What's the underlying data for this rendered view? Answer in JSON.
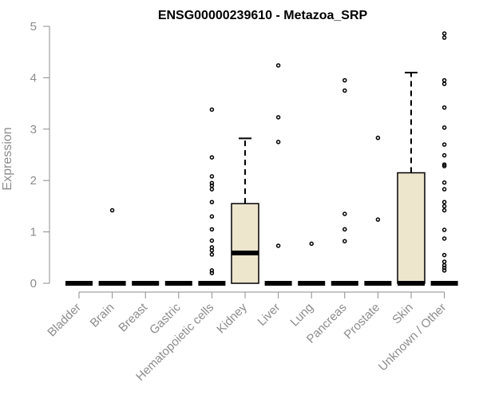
{
  "chart_data": {
    "type": "boxplot",
    "title": "ENSG00000239610 - Metazoa_SRP",
    "xlabel": "",
    "ylabel": "Expression",
    "ylim": [
      0,
      5
    ],
    "yticks": [
      "0",
      "1",
      "2",
      "3",
      "4",
      "5"
    ],
    "grid": false,
    "legend": "none",
    "box_fill": "#ede6cd",
    "categories": [
      "Bladder",
      "Brain",
      "Breast",
      "Gastric",
      "Hematopoietic cells",
      "Kidney",
      "Liver",
      "Lung",
      "Pancreas",
      "Prostate",
      "Skin",
      "Unknown / Other"
    ],
    "boxes": [
      {
        "q1": 0,
        "median": 0,
        "q3": 0,
        "whisker_low": 0,
        "whisker_high": 0,
        "outliers": []
      },
      {
        "q1": 0,
        "median": 0,
        "q3": 0,
        "whisker_low": 0,
        "whisker_high": 0,
        "outliers": [
          1.42
        ]
      },
      {
        "q1": 0,
        "median": 0,
        "q3": 0,
        "whisker_low": 0,
        "whisker_high": 0,
        "outliers": []
      },
      {
        "q1": 0,
        "median": 0,
        "q3": 0,
        "whisker_low": 0,
        "whisker_high": 0,
        "outliers": []
      },
      {
        "q1": 0,
        "median": 0,
        "q3": 0,
        "whisker_low": 0,
        "whisker_high": 0,
        "outliers": [
          3.38,
          2.45,
          2.08,
          1.95,
          1.9,
          1.83,
          1.58,
          1.3,
          1.05,
          0.83,
          0.7,
          0.64,
          0.56,
          0.25,
          0.2
        ]
      },
      {
        "q1": 0,
        "median": 0.59,
        "q3": 1.55,
        "whisker_low": 0,
        "whisker_high": 2.82,
        "outliers": []
      },
      {
        "q1": 0,
        "median": 0,
        "q3": 0,
        "whisker_low": 0,
        "whisker_high": 0,
        "outliers": [
          4.24,
          3.23,
          2.75,
          0.73
        ]
      },
      {
        "q1": 0,
        "median": 0,
        "q3": 0,
        "whisker_low": 0,
        "whisker_high": 0,
        "outliers": [
          0.77
        ]
      },
      {
        "q1": 0,
        "median": 0,
        "q3": 0,
        "whisker_low": 0,
        "whisker_high": 0,
        "outliers": [
          3.95,
          3.75,
          1.35,
          1.05,
          0.82
        ]
      },
      {
        "q1": 0,
        "median": 0,
        "q3": 0,
        "whisker_low": 0,
        "whisker_high": 0,
        "outliers": [
          2.83,
          1.24
        ]
      },
      {
        "q1": 0,
        "median": 0,
        "q3": 2.15,
        "whisker_low": 0,
        "whisker_high": 4.1,
        "outliers": []
      },
      {
        "q1": 0,
        "median": 0,
        "q3": 0,
        "whisker_low": 0,
        "whisker_high": 0,
        "outliers": [
          4.86,
          4.78,
          3.95,
          3.88,
          3.42,
          3.03,
          2.7,
          2.49,
          2.31,
          2.28,
          1.96,
          1.83,
          1.58,
          1.5,
          1.42,
          1.04,
          0.87,
          0.55,
          0.42,
          0.35,
          0.3,
          0.25
        ]
      }
    ]
  }
}
